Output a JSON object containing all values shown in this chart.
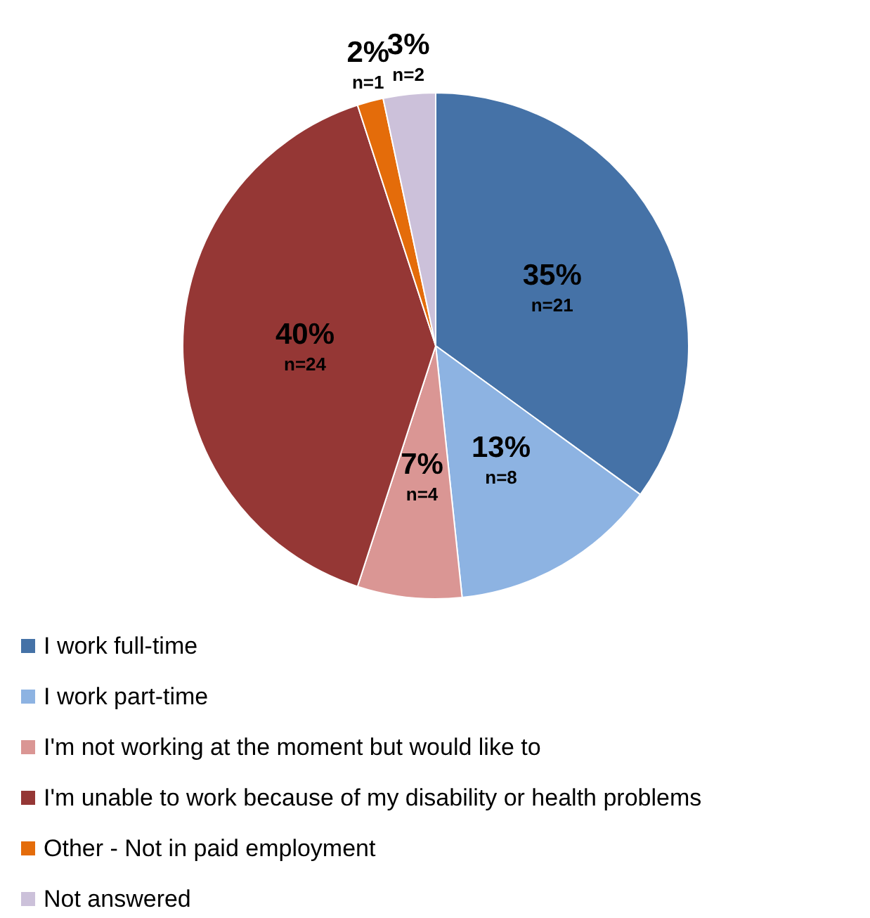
{
  "chart_data": {
    "type": "pie",
    "categories": [
      "I work full-time",
      "I work part-time",
      "I'm not working at the moment but would like to",
      "I'm unable to work because of my disability or health problems",
      "Other - Not in paid employment",
      "Not answered"
    ],
    "values": [
      21,
      8,
      4,
      24,
      1,
      2
    ],
    "colors": [
      "#4572a7",
      "#8db3e2",
      "#da9694",
      "#953735",
      "#e46c0a",
      "#ccc1da"
    ],
    "value_labels": [
      "35%\nn=21",
      "13%\nn=8",
      "7%\nn=4",
      "40%\nn=24",
      "2%\nn=1",
      "3%\nn=2"
    ],
    "legend": "bottom left"
  }
}
